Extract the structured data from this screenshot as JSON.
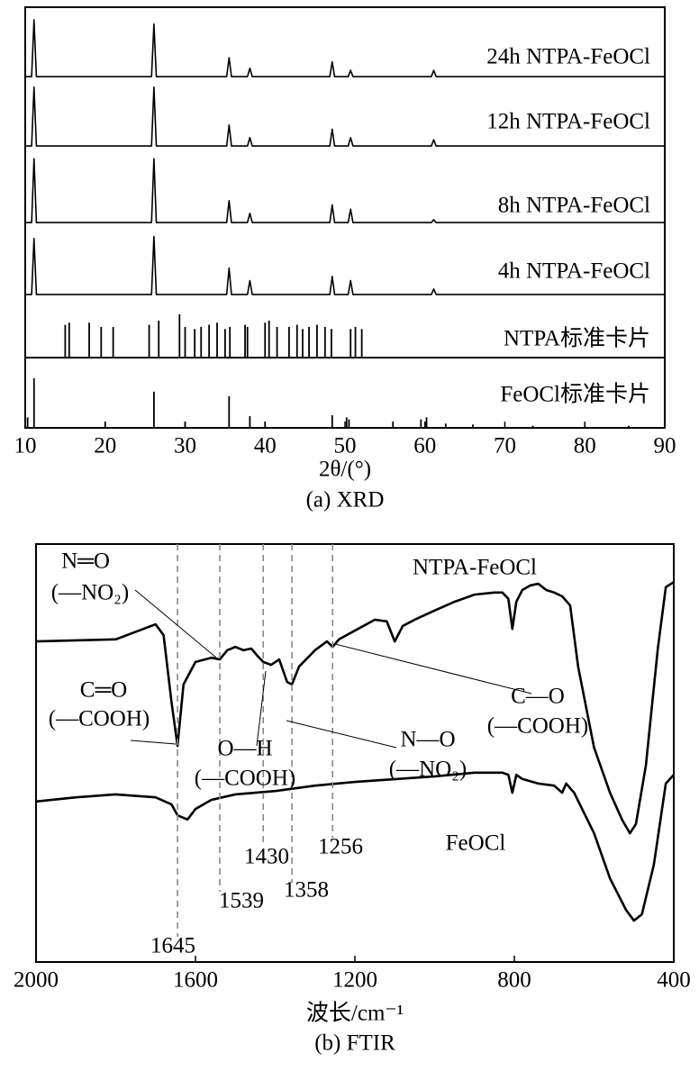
{
  "chart_data": [
    {
      "type": "line",
      "x_label": "2θ/(°)",
      "caption": "(a) XRD",
      "xlim": [
        10,
        90
      ],
      "xticks": [
        10,
        20,
        30,
        40,
        50,
        60,
        70,
        80,
        90
      ],
      "ylim": [
        0,
        100
      ],
      "x": [
        10,
        10.8,
        11.1,
        11.4,
        20,
        25.8,
        26.1,
        26.4,
        35.2,
        35.5,
        35.8,
        37.8,
        38.1,
        38.4,
        48.1,
        48.4,
        48.7,
        50.4,
        50.7,
        51,
        60.8,
        61.1,
        61.4,
        90
      ],
      "series": [
        {
          "name": "24h NTPA-FeOCl",
          "color": "#000000",
          "values": [
            83.5,
            83.5,
            97,
            83.5,
            83.5,
            83.5,
            96,
            83.5,
            83.5,
            88,
            83.5,
            83.5,
            85.5,
            83.5,
            83.5,
            87,
            83.5,
            83.5,
            85,
            83.5,
            83.5,
            85,
            83.5,
            83.5
          ]
        },
        {
          "name": "12h NTPA-FeOCl",
          "color": "#000000",
          "values": [
            67,
            67,
            81,
            67,
            67,
            67,
            81,
            67,
            67,
            72,
            67,
            67,
            69,
            67,
            67,
            71,
            67,
            67,
            69,
            67,
            67,
            68.5,
            67,
            67
          ]
        },
        {
          "name": "8h NTPA-FeOCl",
          "color": "#000000",
          "values": [
            48.8,
            48.8,
            64,
            48.8,
            48.8,
            48.8,
            64,
            48.8,
            48.8,
            54,
            48.8,
            48.8,
            51,
            48.8,
            48.8,
            53,
            48.8,
            48.8,
            52,
            48.8,
            48.8,
            49.5,
            48.8,
            48.8
          ]
        },
        {
          "name": "4h NTPA-FeOCl",
          "color": "#000000",
          "values": [
            31.7,
            31.7,
            45,
            31.7,
            31.7,
            31.7,
            45.5,
            31.7,
            31.7,
            38,
            31.7,
            31.7,
            35,
            31.7,
            31.7,
            36,
            31.7,
            31.7,
            35,
            31.7,
            31.7,
            33,
            31.7,
            31.7
          ]
        }
      ],
      "reference_cards": [
        {
          "name": "NTPA标准卡片",
          "positions": [
            15,
            15.5,
            18,
            19.5,
            21,
            25.5,
            26.7,
            29.3,
            30,
            31.2,
            32,
            33,
            34,
            35,
            35.6,
            37.5,
            37.8,
            40,
            40.5,
            41.5,
            43,
            44,
            44.7,
            45.5,
            46.5,
            47.5,
            48.3,
            50.7,
            51.3,
            52.1
          ],
          "values": [
            24.5,
            25,
            25,
            24,
            24,
            24.5,
            25.5,
            27,
            24,
            23.5,
            24,
            24.5,
            25,
            23.5,
            24,
            24.5,
            24,
            25,
            25.5,
            24,
            24,
            24.5,
            23.5,
            24,
            24.5,
            24,
            23.5,
            23.5,
            24,
            23.5
          ]
        },
        {
          "name": "FeOCl标准卡片",
          "positions": [
            10.3,
            11.1,
            20,
            26.1,
            30,
            35.5,
            38.1,
            40,
            48.4,
            50.2,
            50.5,
            56,
            59.5,
            60.2,
            62.6,
            66,
            73.5,
            80,
            85.5
          ],
          "values": [
            2.5,
            11.8,
            1.5,
            8.6,
            1.5,
            7.5,
            2.8,
            1.5,
            3,
            2.5,
            2,
            1.5,
            2,
            2.5,
            1,
            0.8,
            0.5,
            0.5,
            0.5
          ]
        }
      ]
    },
    {
      "type": "line",
      "x_label": "波长/cm⁻¹",
      "caption": "(b) FTIR",
      "xlim": [
        2000,
        400
      ],
      "xticks": [
        2000,
        1600,
        1200,
        800,
        400
      ],
      "ylim": [
        0,
        100
      ],
      "series": [
        {
          "name": "NTPA-FeOCl",
          "color": "#000000",
          "x": [
            2000,
            1800,
            1700,
            1680,
            1660,
            1645,
            1630,
            1600,
            1560,
            1539,
            1520,
            1500,
            1480,
            1460,
            1445,
            1430,
            1410,
            1390,
            1370,
            1358,
            1340,
            1300,
            1270,
            1256,
            1240,
            1200,
            1150,
            1120,
            1100,
            1080,
            1050,
            1000,
            950,
            900,
            850,
            830,
            815,
            805,
            795,
            780,
            760,
            740,
            720,
            700,
            680,
            660,
            640,
            600,
            560,
            530,
            510,
            495,
            470,
            440,
            420,
            400
          ],
          "values": [
            76.7,
            77.2,
            80.8,
            78.2,
            62.1,
            51.7,
            66.4,
            71.8,
            72.8,
            72.4,
            74.6,
            75.4,
            74.6,
            75,
            73.3,
            71.8,
            71.1,
            72.4,
            67,
            66.4,
            70.7,
            74.6,
            76.7,
            75.4,
            77.2,
            79.3,
            81.9,
            81.5,
            76.7,
            80.4,
            81.9,
            84.1,
            86.2,
            87.9,
            88.4,
            88.4,
            86.9,
            79.7,
            86.2,
            89,
            90.1,
            90.5,
            89,
            88.4,
            87.5,
            85.3,
            70.7,
            51.3,
            40.5,
            34.1,
            30.8,
            33,
            47,
            75,
            89.7,
            90.9
          ]
        },
        {
          "name": "FeOCl",
          "color": "#000000",
          "x": [
            2000,
            1900,
            1800,
            1700,
            1660,
            1645,
            1620,
            1600,
            1560,
            1500,
            1400,
            1300,
            1200,
            1000,
            900,
            830,
            815,
            805,
            795,
            780,
            740,
            700,
            680,
            670,
            650,
            600,
            560,
            520,
            500,
            480,
            450,
            420,
            400
          ],
          "values": [
            38.4,
            39.4,
            40.1,
            39.4,
            37.7,
            35.1,
            34.1,
            36.6,
            38.8,
            40.1,
            40.9,
            42.2,
            43.1,
            44.4,
            45.3,
            45.3,
            44.8,
            40.5,
            44.8,
            43.8,
            42.7,
            42.2,
            40.5,
            42.7,
            40.5,
            30.8,
            20,
            12.5,
            9.9,
            11.4,
            23.3,
            42.7,
            44.8
          ]
        }
      ],
      "marker_lines": [
        1645,
        1539,
        1430,
        1358,
        1256
      ],
      "annotations": [
        {
          "group": "N═O",
          "moiety": "(—NO₂)"
        },
        {
          "group": "C═O",
          "moiety": "(—COOH)"
        },
        {
          "group": "O—H",
          "moiety": "(—COOH)"
        },
        {
          "group": "N—O",
          "moiety": "(—NO₂)"
        },
        {
          "group": "C—O",
          "moiety": "(—COOH)"
        }
      ]
    }
  ]
}
